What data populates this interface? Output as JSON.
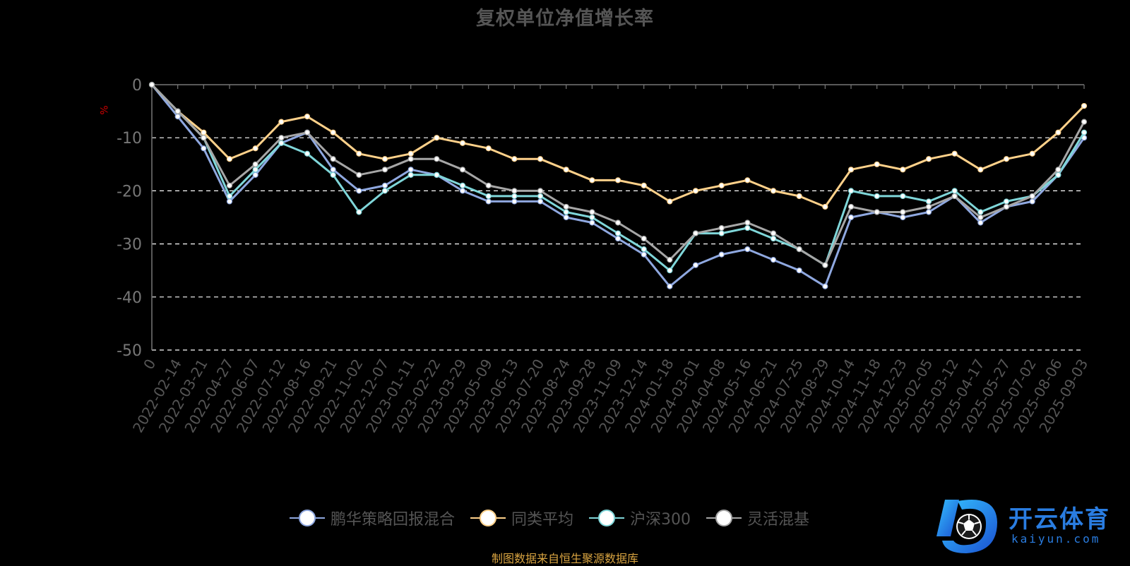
{
  "chart_data": {
    "type": "line",
    "title": "复权单位净值增长率",
    "ylabel": "%",
    "ylim": [
      -50,
      0
    ],
    "yticks": [
      0,
      -10,
      -20,
      -30,
      -40,
      -50
    ],
    "grid": true,
    "legend_position": "bottom",
    "x": [
      "0",
      "2022-02-14",
      "2022-03-21",
      "2022-04-27",
      "2022-06-07",
      "2022-07-12",
      "2022-08-16",
      "2022-09-21",
      "2022-11-02",
      "2022-12-07",
      "2023-01-11",
      "2023-02-22",
      "2023-03-29",
      "2023-05-09",
      "2023-06-13",
      "2023-07-20",
      "2023-08-24",
      "2023-09-28",
      "2023-11-09",
      "2023-12-14",
      "2024-01-18",
      "2024-03-01",
      "2024-04-08",
      "2024-05-16",
      "2024-06-21",
      "2024-07-25",
      "2024-08-29",
      "2024-10-14",
      "2024-11-18",
      "2024-12-23",
      "2025-02-05",
      "2025-03-12",
      "2025-04-17",
      "2025-05-27",
      "2025-07-02",
      "2025-08-06",
      "2025-09-03"
    ],
    "series": [
      {
        "name": "鹏华策略回报混合",
        "color": "#8fa8e0",
        "values": [
          0,
          -6,
          -12,
          -22,
          -17,
          -11,
          -9,
          -16,
          -20,
          -19,
          -16,
          -17,
          -20,
          -22,
          -22,
          -22,
          -25,
          -26,
          -29,
          -32,
          -38,
          -34,
          -32,
          -31,
          -33,
          -35,
          -38,
          -25,
          -24,
          -25,
          -24,
          -21,
          -26,
          -23,
          -22,
          -17,
          -10
        ]
      },
      {
        "name": "同类平均",
        "color": "#ffd18a",
        "values": [
          0,
          -5,
          -9,
          -14,
          -12,
          -7,
          -6,
          -9,
          -13,
          -14,
          -13,
          -10,
          -11,
          -12,
          -14,
          -14,
          -16,
          -18,
          -18,
          -19,
          -22,
          -20,
          -19,
          -18,
          -20,
          -21,
          -23,
          -16,
          -15,
          -16,
          -14,
          -13,
          -16,
          -14,
          -13,
          -9,
          -4
        ]
      },
      {
        "name": "沪深300",
        "color": "#7fd6d9",
        "values": [
          0,
          -5,
          -10,
          -21,
          -16,
          -11,
          -13,
          -17,
          -24,
          -20,
          -17,
          -17,
          -19,
          -21,
          -21,
          -21,
          -24,
          -25,
          -28,
          -31,
          -35,
          -28,
          -28,
          -27,
          -29,
          -31,
          -34,
          -20,
          -21,
          -21,
          -22,
          -20,
          -24,
          -22,
          -21,
          -17,
          -9
        ]
      },
      {
        "name": "灵活混基",
        "color": "#a6a6a6",
        "values": [
          0,
          -5,
          -10,
          -19,
          -15,
          -10,
          -9,
          -14,
          -17,
          -16,
          -14,
          -14,
          -16,
          -19,
          -20,
          -20,
          -23,
          -24,
          -26,
          -29,
          -33,
          -28,
          -27,
          -26,
          -28,
          -31,
          -34,
          -23,
          -24,
          -24,
          -23,
          -21,
          -25,
          -23,
          -21,
          -16,
          -7
        ]
      }
    ]
  },
  "source_note": "制图数据来自恒生聚源数据库",
  "brand": {
    "name_cn": "开云体育",
    "name_en": "kaiyun.com"
  }
}
